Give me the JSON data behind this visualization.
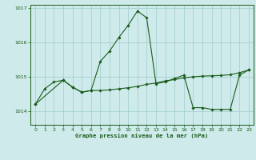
{
  "xlabel": "Graphe pression niveau de la mer (hPa)",
  "background_color": "#ceeaea",
  "grid_color": "#a0cccc",
  "line_color": "#1a5c1a",
  "ylim": [
    1013.6,
    1017.1
  ],
  "xlim": [
    -0.5,
    23.5
  ],
  "yticks": [
    1014,
    1015,
    1016,
    1017
  ],
  "xticks": [
    0,
    1,
    2,
    3,
    4,
    5,
    6,
    7,
    8,
    9,
    10,
    11,
    12,
    13,
    14,
    15,
    16,
    17,
    18,
    19,
    20,
    21,
    22,
    23
  ],
  "series1_x": [
    0,
    1,
    2,
    3,
    4,
    5,
    6,
    7,
    8,
    9,
    10,
    11,
    12,
    13,
    14,
    15,
    16,
    17,
    18,
    19,
    20,
    21,
    22,
    23
  ],
  "series1_y": [
    1014.2,
    1014.65,
    1014.85,
    1014.9,
    1014.7,
    1014.55,
    1014.6,
    1015.45,
    1015.75,
    1016.15,
    1016.5,
    1016.92,
    1016.72,
    1014.8,
    1014.85,
    1014.95,
    1015.05,
    1014.1,
    1014.1,
    1014.05,
    1014.05,
    1014.05,
    1015.05,
    1015.2
  ],
  "series2_x": [
    0,
    3,
    4,
    5,
    6,
    7,
    8,
    9,
    10,
    11,
    12,
    13,
    14,
    15,
    16,
    17,
    18,
    19,
    20,
    21,
    22,
    23
  ],
  "series2_y": [
    1014.2,
    1014.9,
    1014.7,
    1014.55,
    1014.6,
    1014.6,
    1014.62,
    1014.65,
    1014.68,
    1014.72,
    1014.78,
    1014.82,
    1014.88,
    1014.92,
    1014.97,
    1015.0,
    1015.02,
    1015.03,
    1015.04,
    1015.06,
    1015.12,
    1015.2
  ]
}
